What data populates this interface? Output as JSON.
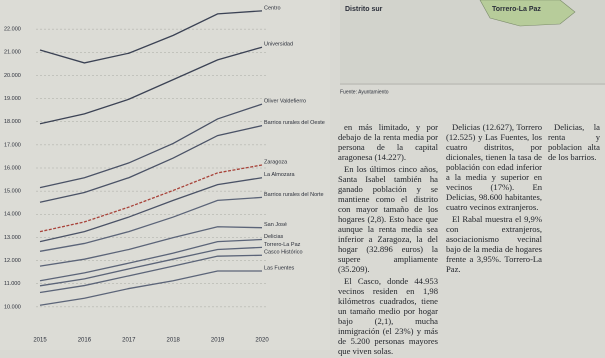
{
  "chart_data": {
    "type": "line",
    "x": [
      2015,
      2016,
      2017,
      2018,
      2019,
      2020
    ],
    "xlim": [
      2015,
      2020
    ],
    "xticks": [
      2015,
      2016,
      2017,
      2018,
      2019,
      2020
    ],
    "ylim": [
      9000,
      23000
    ],
    "yticks": [
      {
        "value": 10000,
        "label": "10.000"
      },
      {
        "value": 11000,
        "label": "11.000"
      },
      {
        "value": 12000,
        "label": "12.000"
      },
      {
        "value": 13000,
        "label": "13.000"
      },
      {
        "value": 14000,
        "label": "14.000"
      },
      {
        "value": 15000,
        "label": "15.000"
      },
      {
        "value": 16000,
        "label": "16.000"
      },
      {
        "value": 17000,
        "label": "17.000"
      },
      {
        "value": 18000,
        "label": "18.000"
      },
      {
        "value": 19000,
        "label": "19.000"
      },
      {
        "value": 20000,
        "label": "20.000"
      },
      {
        "value": 21000,
        "label": "21.000"
      },
      {
        "value": 22000,
        "label": "22.000"
      }
    ],
    "grid": true,
    "series": [
      {
        "name": "Centro",
        "color": "#3b4254",
        "values": [
          21100,
          20540,
          20960,
          21730,
          22660,
          22790
        ]
      },
      {
        "name": "Universidad",
        "color": "#3b4254",
        "values": [
          17910,
          18340,
          18970,
          19820,
          20670,
          21220
        ]
      },
      {
        "name": "Oliver Valdefierro",
        "color": "#4a5266",
        "values": [
          15150,
          15580,
          16220,
          17060,
          18120,
          18760
        ]
      },
      {
        "name": "Barrios rurales del Oeste",
        "color": "#4a5266",
        "values": [
          14520,
          14940,
          15580,
          16430,
          17400,
          17830
        ]
      },
      {
        "name": "Zaragoza",
        "color": "#a8433a",
        "values": [
          13250,
          13670,
          14310,
          15030,
          15790,
          16130
        ]
      },
      {
        "name": "La Almozara",
        "color": "#4a5266",
        "values": [
          12820,
          13250,
          13880,
          14600,
          15280,
          15580
        ]
      },
      {
        "name": "Barrios rurales del Norte",
        "color": "#5b6478",
        "values": [
          12400,
          12740,
          13250,
          13880,
          14600,
          14730
        ]
      },
      {
        "name": "San José",
        "color": "#5b6478",
        "values": [
          11760,
          12060,
          12480,
          12990,
          13460,
          13420
        ]
      },
      {
        "name": "Delicias",
        "color": "#5b6478",
        "values": [
          11130,
          11470,
          11890,
          12320,
          12820,
          12910
        ]
      },
      {
        "name": "Torrero-La Paz",
        "color": "#5b6478",
        "values": [
          10910,
          11210,
          11640,
          12060,
          12480,
          12570
        ]
      },
      {
        "name": "Casco Histórico",
        "color": "#5b6478",
        "values": [
          10620,
          10920,
          11340,
          11760,
          12190,
          12230
        ]
      },
      {
        "name": "Las Fuentes",
        "color": "#5b6478",
        "values": [
          10070,
          10370,
          10790,
          11130,
          11550,
          11550
        ]
      }
    ]
  },
  "map": {
    "district_label": "Distrito sur",
    "area_label": "Torrero-La Paz"
  },
  "source": "Fuente: Ayuntamiento",
  "article": {
    "columns": [
      [
        "en más limitado, y por debajo de la renta media por persona de la capital aragonesa (14.227).",
        "En los últimos cinco años, Santa Isabel también ha ganado población y se mantiene como el distrito con mayor tamaño de los hogares (2,8). Esto hace que aunque la renta media sea inferior a Zaragoza, la del hogar (32.896 euros) la supere ampliamente (35.209).",
        "El Casco, donde 44.953 vecinos residen en 1,98 kilómetros cuadrados, tiene un tamaño medio por hogar bajo (2,1), mucha inmigración (el 23%) y más de 5.200 personas mayores que viven solas."
      ],
      [
        "Delicias (12.627), Torrero (12.525) y Las Fuentes, los cuatro distritos, por dicionales, tienen la tasa de población con edad inferior a la media y superior en vecinos (17%). En Delicias, 98.600 habitantes, cuatro vecinos extranjeros.",
        "El Rabal muestra el 9,9% con extranjeros, asociacionismo vecinal bajo de la media de hogares frente a 3,95%. Torrero-La Paz."
      ],
      [
        "Delicias, la renta y poblacion alta de los barrios."
      ]
    ]
  }
}
